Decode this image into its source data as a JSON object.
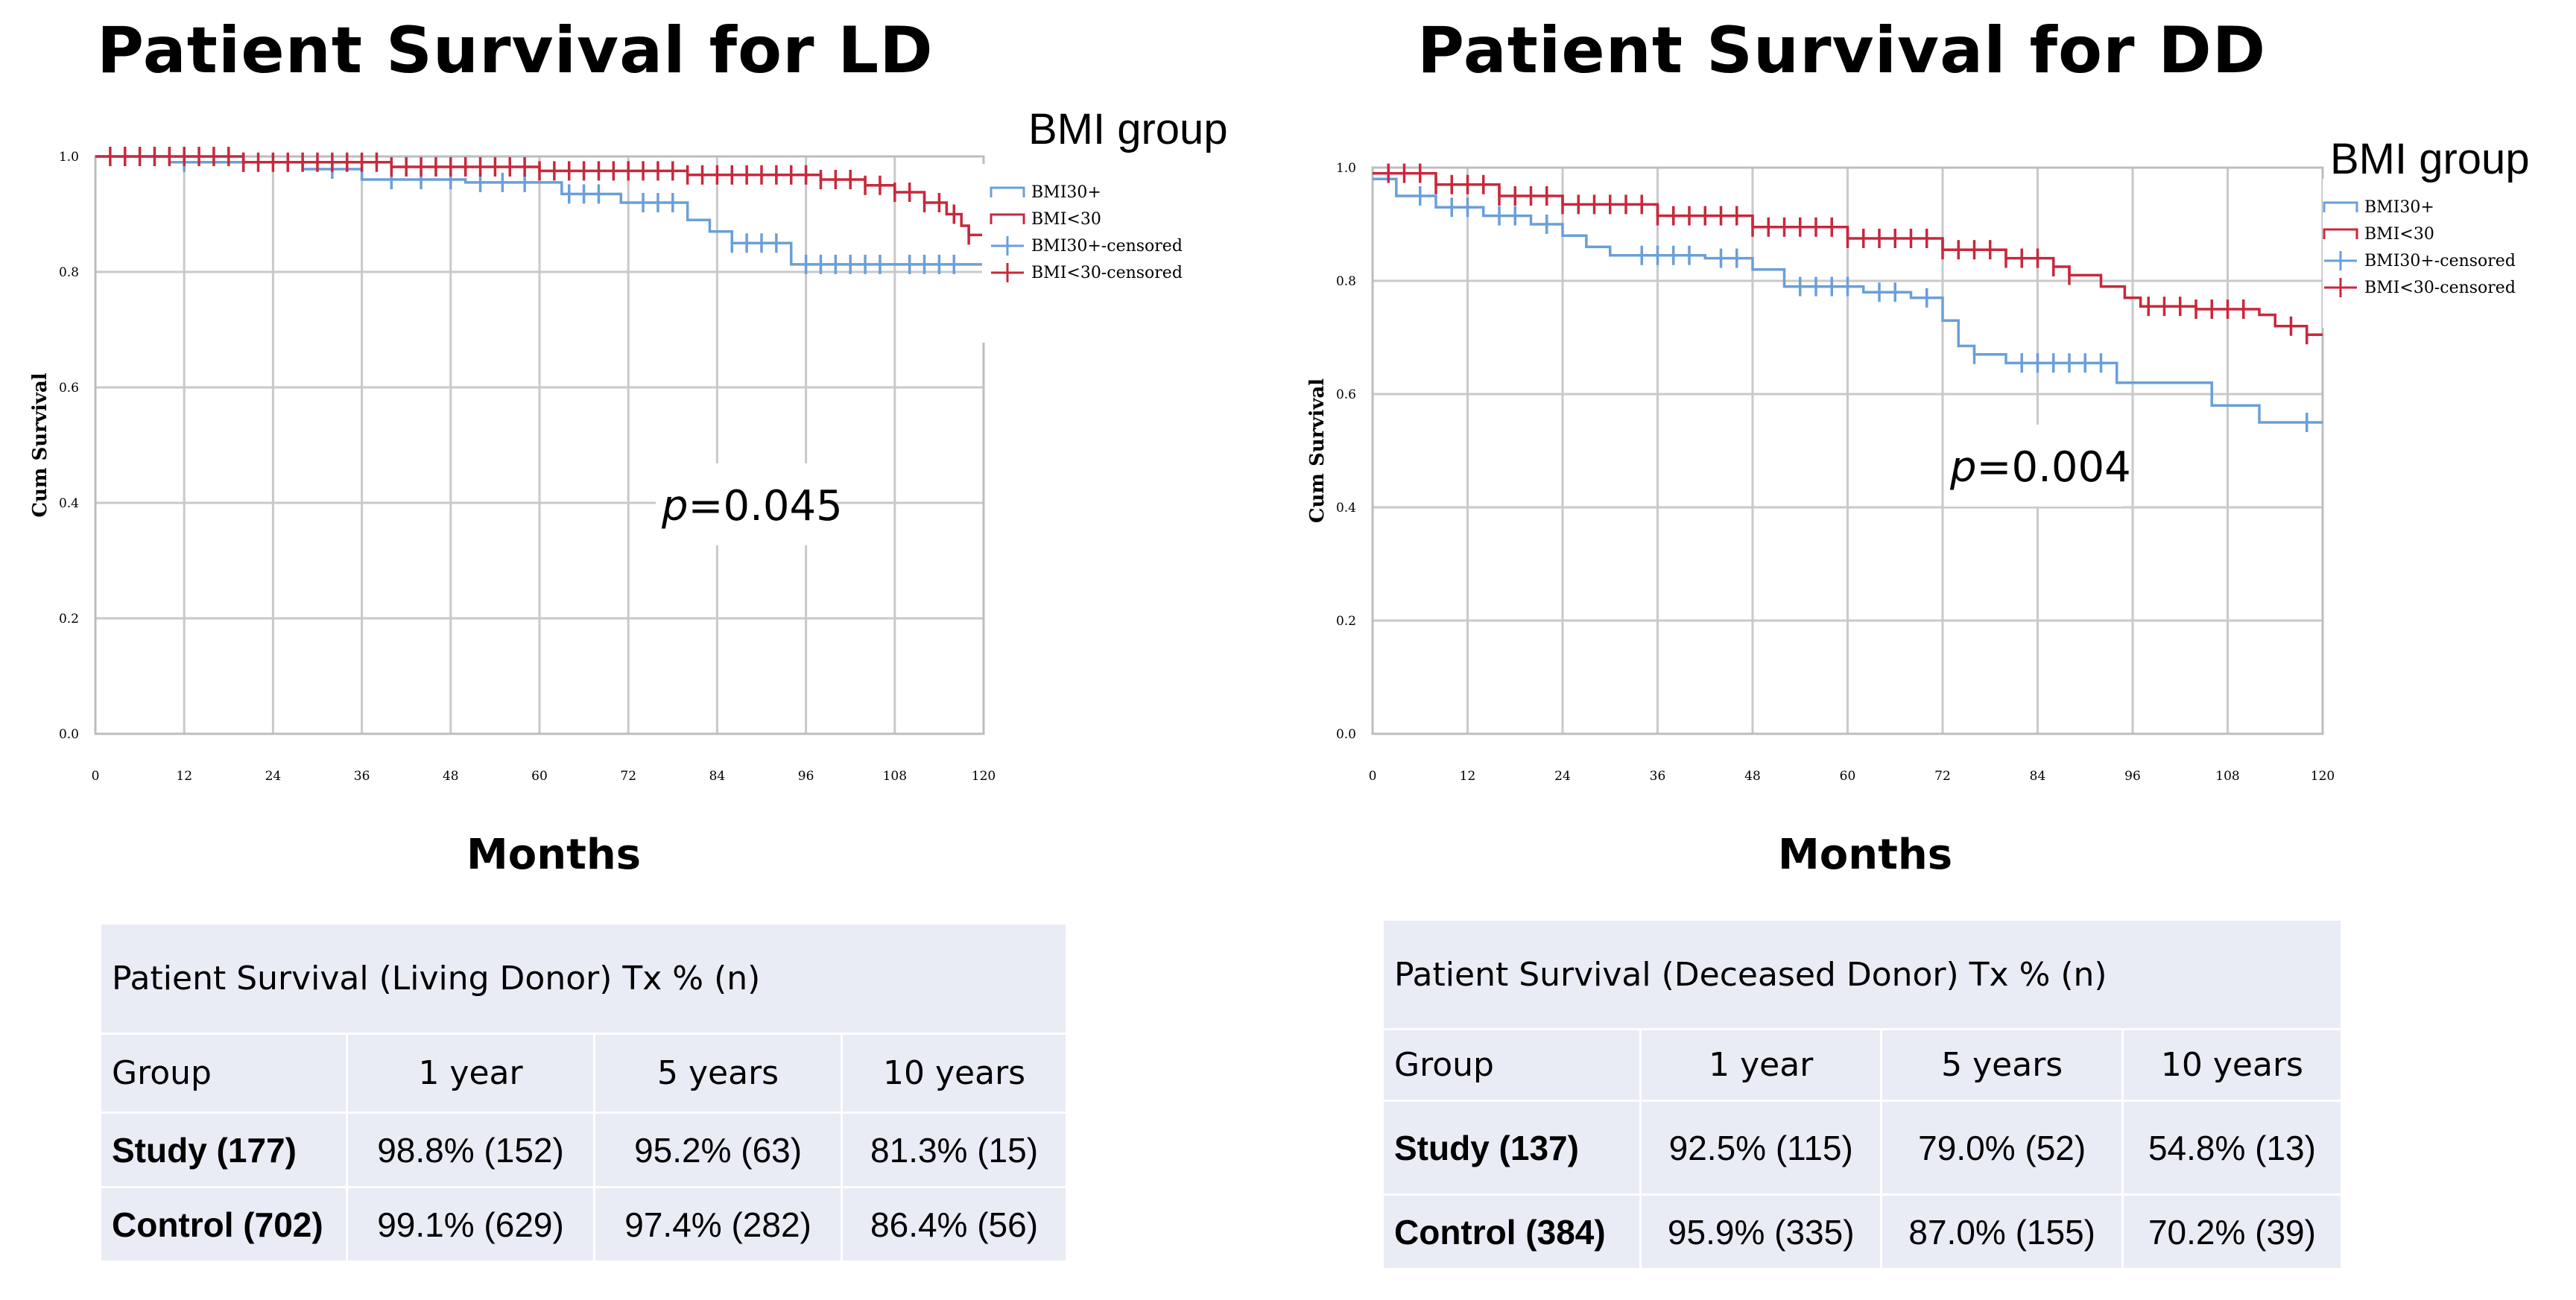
{
  "chart_data": [
    {
      "type": "line",
      "subtype": "kaplan-meier",
      "title": "Patient Survival for LD",
      "xlabel": "Months",
      "ylabel": "Cum Survival",
      "xlim": [
        0,
        120
      ],
      "ylim": [
        0,
        1.0
      ],
      "x_ticks": [
        0,
        12,
        24,
        36,
        48,
        60,
        72,
        84,
        96,
        108,
        120
      ],
      "y_ticks": [
        0.0,
        0.2,
        0.4,
        0.6,
        0.8,
        1.0
      ],
      "y_tick_labels": [
        "0.0",
        "0.2",
        "0.4",
        "0.6",
        "0.8",
        "1.0"
      ],
      "legend_title": "BMI group",
      "legend_entries": [
        "BMI30+",
        "BMI<30",
        "BMI30+-censored",
        "BMI<30-censored"
      ],
      "annotation": {
        "italic": "p",
        "text": "=0.045"
      },
      "colors": {
        "bmi30plus": "#6a9fd8",
        "bmi_under30": "#c8283c"
      },
      "series": [
        {
          "name": "BMI30+",
          "color": "#6a9fd8",
          "points": [
            [
              0,
              1.0
            ],
            [
              10,
              0.99
            ],
            [
              28,
              0.978
            ],
            [
              36,
              0.96
            ],
            [
              50,
              0.955
            ],
            [
              63,
              0.935
            ],
            [
              71,
              0.92
            ],
            [
              80,
              0.89
            ],
            [
              83,
              0.87
            ],
            [
              86,
              0.85
            ],
            [
              94,
              0.813
            ],
            [
              120,
              0.813
            ]
          ],
          "censored": [
            12,
            20,
            32,
            40,
            44,
            48,
            52,
            55,
            58,
            64,
            66,
            68,
            74,
            76,
            78,
            86,
            88,
            90,
            92,
            96,
            98,
            100,
            102,
            104,
            106,
            110,
            112,
            114,
            116
          ]
        },
        {
          "name": "BMI<30",
          "color": "#c8283c",
          "points": [
            [
              0,
              1.0
            ],
            [
              20,
              0.99
            ],
            [
              40,
              0.982
            ],
            [
              60,
              0.975
            ],
            [
              80,
              0.968
            ],
            [
              98,
              0.96
            ],
            [
              104,
              0.95
            ],
            [
              108,
              0.938
            ],
            [
              112,
              0.92
            ],
            [
              115,
              0.9
            ],
            [
              117,
              0.88
            ],
            [
              118,
              0.864
            ],
            [
              120,
              0.864
            ]
          ],
          "censored": [
            2,
            4,
            6,
            8,
            10,
            12,
            14,
            16,
            18,
            20,
            22,
            24,
            26,
            28,
            30,
            32,
            34,
            36,
            38,
            40,
            42,
            44,
            46,
            48,
            50,
            52,
            54,
            56,
            58,
            60,
            62,
            64,
            66,
            68,
            70,
            72,
            74,
            76,
            78,
            80,
            82,
            84,
            86,
            88,
            90,
            92,
            94,
            96,
            98,
            100,
            102,
            104,
            106,
            108,
            110,
            112,
            114,
            116,
            118
          ]
        }
      ]
    },
    {
      "type": "line",
      "subtype": "kaplan-meier",
      "title": "Patient Survival for DD",
      "xlabel": "Months",
      "ylabel": "Cum Survival",
      "xlim": [
        0,
        120
      ],
      "ylim": [
        0,
        1.0
      ],
      "x_ticks": [
        0,
        12,
        24,
        36,
        48,
        60,
        72,
        84,
        96,
        108,
        120
      ],
      "y_ticks": [
        0.0,
        0.2,
        0.4,
        0.6,
        0.8,
        1.0
      ],
      "y_tick_labels": [
        "0.0",
        "0.2",
        "0.4",
        "0.6",
        "0.8",
        "1.0"
      ],
      "legend_title": "BMI group",
      "legend_entries": [
        "BMI30+",
        "BMI<30",
        "BMI30+-censored",
        "BMI<30-censored"
      ],
      "annotation": {
        "italic": "p",
        "text": "=0.004"
      },
      "colors": {
        "bmi30plus": "#6a9fd8",
        "bmi_under30": "#c8283c"
      },
      "series": [
        {
          "name": "BMI30+",
          "color": "#6a9fd8",
          "points": [
            [
              0,
              0.98
            ],
            [
              3,
              0.95
            ],
            [
              8,
              0.93
            ],
            [
              14,
              0.915
            ],
            [
              20,
              0.9
            ],
            [
              24,
              0.88
            ],
            [
              27,
              0.86
            ],
            [
              30,
              0.845
            ],
            [
              42,
              0.84
            ],
            [
              48,
              0.82
            ],
            [
              52,
              0.79
            ],
            [
              62,
              0.78
            ],
            [
              68,
              0.77
            ],
            [
              72,
              0.73
            ],
            [
              74,
              0.685
            ],
            [
              76,
              0.67
            ],
            [
              80,
              0.655
            ],
            [
              94,
              0.62
            ],
            [
              106,
              0.58
            ],
            [
              112,
              0.55
            ],
            [
              120,
              0.55
            ]
          ],
          "censored": [
            6,
            10,
            12,
            16,
            18,
            22,
            34,
            36,
            38,
            40,
            44,
            46,
            54,
            56,
            58,
            60,
            64,
            66,
            70,
            76,
            82,
            84,
            86,
            88,
            90,
            92,
            118
          ]
        },
        {
          "name": "BMI<30",
          "color": "#c8283c",
          "points": [
            [
              0,
              0.99
            ],
            [
              8,
              0.97
            ],
            [
              16,
              0.95
            ],
            [
              24,
              0.935
            ],
            [
              36,
              0.915
            ],
            [
              48,
              0.895
            ],
            [
              60,
              0.875
            ],
            [
              72,
              0.855
            ],
            [
              80,
              0.84
            ],
            [
              86,
              0.825
            ],
            [
              88,
              0.81
            ],
            [
              92,
              0.79
            ],
            [
              95,
              0.77
            ],
            [
              97,
              0.755
            ],
            [
              104,
              0.75
            ],
            [
              112,
              0.74
            ],
            [
              114,
              0.72
            ],
            [
              118,
              0.705
            ],
            [
              120,
              0.705
            ]
          ],
          "censored": [
            2,
            4,
            6,
            8,
            10,
            12,
            14,
            16,
            18,
            20,
            22,
            24,
            26,
            28,
            30,
            32,
            34,
            36,
            38,
            40,
            42,
            44,
            46,
            48,
            50,
            52,
            54,
            56,
            58,
            60,
            62,
            64,
            66,
            68,
            70,
            72,
            74,
            76,
            78,
            80,
            82,
            84,
            86,
            88,
            98,
            100,
            102,
            104,
            106,
            108,
            110,
            116,
            118
          ]
        }
      ]
    }
  ],
  "tables": [
    {
      "caption": "Patient Survival  (Living Donor) Tx % (n)",
      "headers": [
        "Group",
        "1 year",
        "5 years",
        "10 years"
      ],
      "rows": [
        [
          "Study (177)",
          "98.8% (152)",
          "95.2% (63)",
          "81.3% (15)"
        ],
        [
          "Control (702)",
          "99.1% (629)",
          "97.4% (282)",
          "86.4% (56)"
        ]
      ]
    },
    {
      "caption": "Patient Survival  (Deceased Donor) Tx % (n)",
      "headers": [
        "Group",
        "1 year",
        "5 years",
        "10 years"
      ],
      "rows": [
        [
          "Study (137)",
          "92.5% (115)",
          "79.0% (52)",
          "54.8% (13)"
        ],
        [
          "Control (384)",
          "95.9% (335)",
          "87.0% (155)",
          "70.2% (39)"
        ]
      ]
    }
  ]
}
